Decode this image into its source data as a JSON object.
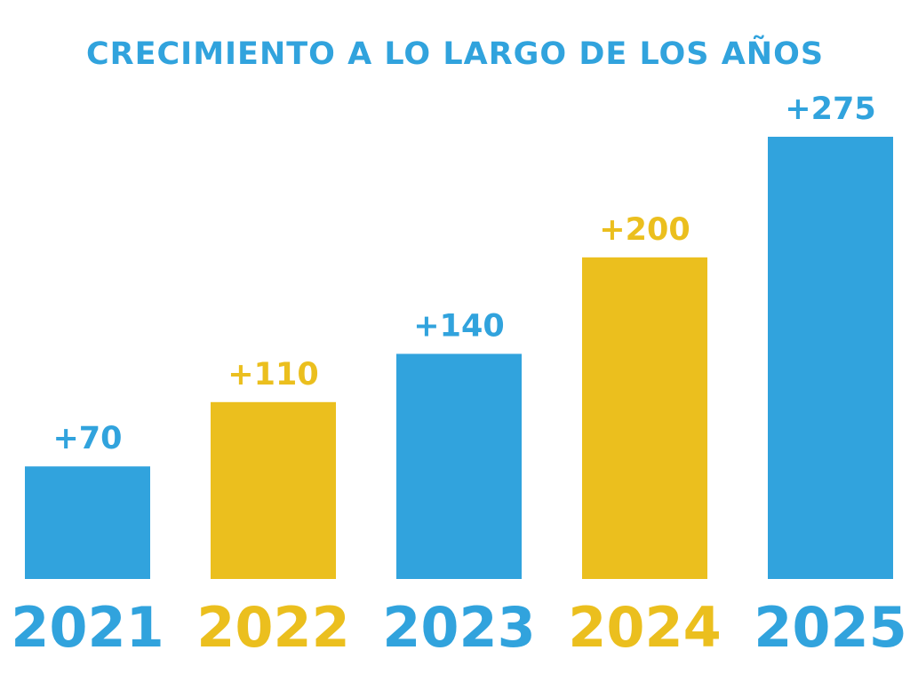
{
  "colors": {
    "blue": "#31a3dd",
    "gold": "#ebbf1e",
    "background": "#ffffff"
  },
  "chart_data": {
    "type": "bar",
    "title": "CRECIMIENTO A LO LARGO DE LOS AÑOS",
    "categories": [
      "2021",
      "2022",
      "2023",
      "2024",
      "2025"
    ],
    "values": [
      70,
      110,
      140,
      200,
      275
    ],
    "data_labels": [
      "+70",
      "+110",
      "+140",
      "+200",
      "+275"
    ],
    "bar_colors": [
      "#31a3dd",
      "#ebbf1e",
      "#31a3dd",
      "#ebbf1e",
      "#31a3dd"
    ],
    "xlabel": "",
    "ylabel": "",
    "ylim": [
      0,
      275
    ],
    "grid": false,
    "legend": "none"
  }
}
